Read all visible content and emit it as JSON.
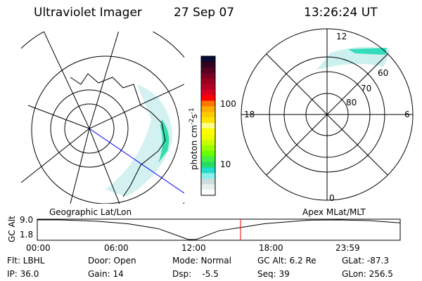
{
  "header": {
    "instrument": "Ultraviolet Imager",
    "date": "27 Sep 07",
    "time": "13:26:24 UT"
  },
  "colorbar": {
    "label": "photon cm",
    "exp1": "-2",
    "unit2": "s",
    "exp2": "-1",
    "ticks": [
      "100",
      "10"
    ],
    "colors": [
      "#0a0a33",
      "#330022",
      "#550022",
      "#770022",
      "#990022",
      "#b40022",
      "#d80022",
      "#ff0000",
      "#ff7700",
      "#ffaa00",
      "#ffc800",
      "#ffe600",
      "#ffff88",
      "#ffff00",
      "#eeff00",
      "#ccff00",
      "#99ff00",
      "#66ff00",
      "#44ee44",
      "#22dd66",
      "#22ddcc",
      "#88eeee",
      "#ccdddd",
      "#e6f0ec",
      "#ffffff"
    ]
  },
  "polar": {
    "mlt_labels": [
      "12",
      "18",
      "6",
      "0"
    ],
    "lat_labels": [
      "60",
      "70",
      "80"
    ]
  },
  "timeline": {
    "left_label": "Geographic Lat/Lon",
    "right_label": "Apex MLat/MLT",
    "ylabel": "GC Alt"
  },
  "chart_data": {
    "type": "line",
    "title": "",
    "xlabel": "",
    "ylabel": "GC Alt",
    "yticks": [
      "9.0",
      "1.8"
    ],
    "xticks": [
      "00:00",
      "06:00",
      "12:00",
      "18:00",
      "23:59"
    ],
    "ylim": [
      1.8,
      9.0
    ],
    "xlim": [
      0,
      24
    ],
    "x": [
      0,
      1.5,
      4,
      6,
      8,
      10,
      10.5,
      12,
      13.44,
      15,
      18,
      20,
      22,
      24
    ],
    "y": [
      9.0,
      9.0,
      8.5,
      7.6,
      5.8,
      1.8,
      1.8,
      5.0,
      6.2,
      7.6,
      8.9,
      9.0,
      8.7,
      7.9
    ],
    "current_time": 13.44,
    "current_time_color": "#ee0000"
  },
  "status": {
    "row1": [
      "Flt: LBHL",
      "Door: Open",
      "Mode: Normal",
      "GC Alt: 6.2 Re",
      "GLat: -87.3"
    ],
    "row2": [
      "IP: 36.0",
      "Gain: 14",
      "Dsp:    -5.5",
      "Seq: 39",
      "GLon: 256.5"
    ]
  }
}
